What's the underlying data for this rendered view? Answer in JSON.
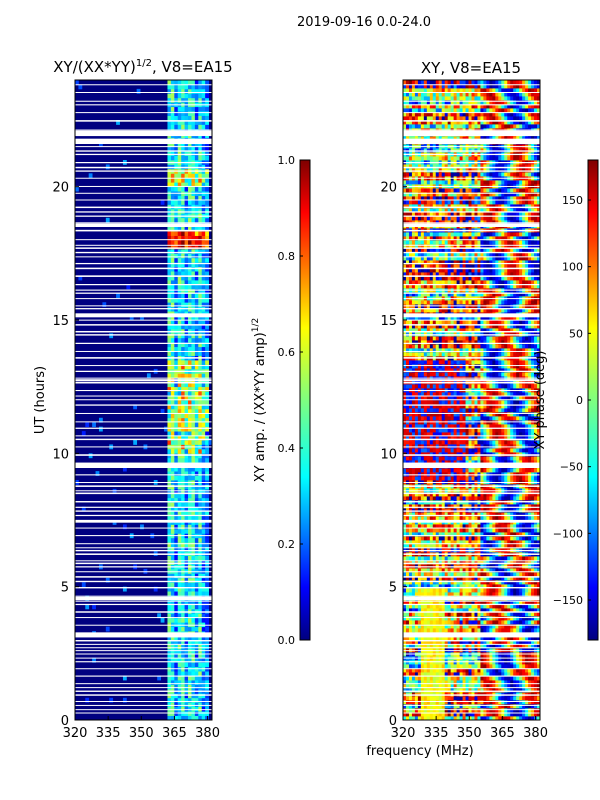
{
  "suptitle": "2019-09-16 0.0-24.0",
  "shared_xlabel": "frequency (MHz)",
  "colors": {
    "background": "#000080",
    "gap": "#ffffff",
    "jet": [
      "#00007f",
      "#0000ff",
      "#007fff",
      "#00ffff",
      "#7fff7f",
      "#ffff00",
      "#ff7f00",
      "#ff0000",
      "#7f0000"
    ]
  },
  "chart_data": [
    {
      "type": "heatmap",
      "title_main": "XY/(XX*YY)",
      "title_sup": "1/2",
      "title_suffix": ", V8=EA15",
      "ylabel": "UT (hours)",
      "xlim": [
        320,
        382
      ],
      "ylim": [
        0,
        24
      ],
      "xticks": [
        320,
        335,
        350,
        365,
        380
      ],
      "yticks": [
        0,
        5,
        10,
        15,
        20
      ],
      "colorbar": {
        "label_main": "XY amp. / (XX*YY amp)",
        "label_sup": "1/2",
        "range": [
          0.0,
          1.0
        ],
        "ticks": [
          "0.0",
          "0.2",
          "0.4",
          "0.6",
          "0.8",
          "1.0"
        ]
      }
    },
    {
      "type": "heatmap",
      "title": "XY, V8=EA15",
      "ylabel": "",
      "xlim": [
        320,
        382
      ],
      "ylim": [
        0,
        24
      ],
      "xticks": [
        320,
        335,
        350,
        365,
        380
      ],
      "yticks": [
        0,
        5,
        10,
        15,
        20
      ],
      "colorbar": {
        "label": "XY phase (deg)",
        "range": [
          -180,
          180
        ],
        "ticks": [
          "−150",
          "−100",
          "−50",
          "0",
          "50",
          "100",
          "150"
        ],
        "tick_values": [
          -150,
          -100,
          -50,
          0,
          50,
          100,
          150
        ]
      }
    }
  ]
}
